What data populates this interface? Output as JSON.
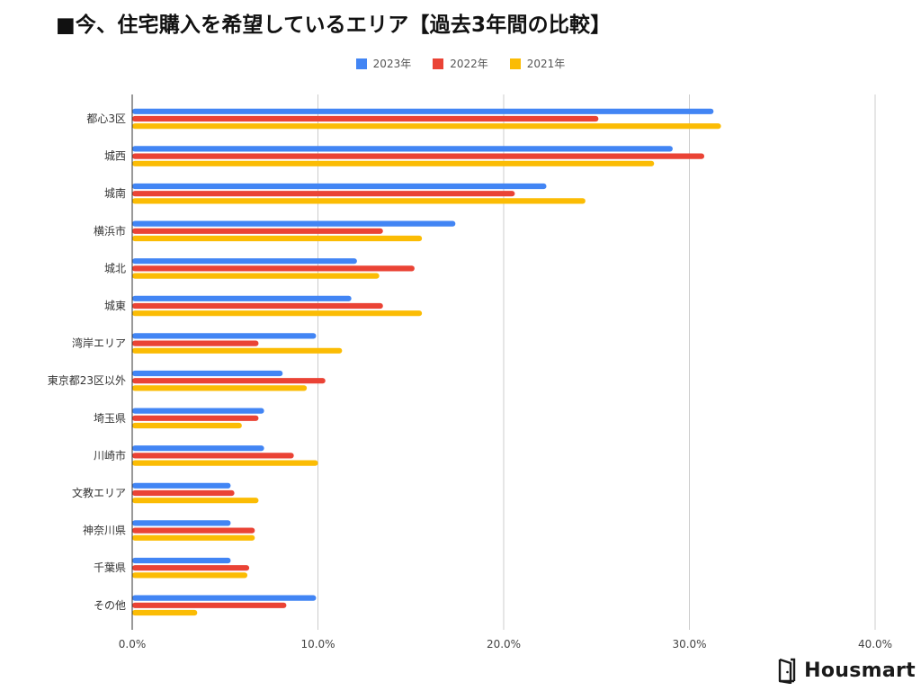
{
  "chart_data": {
    "type": "bar",
    "orientation": "horizontal",
    "title": "■今、住宅購入を希望しているエリア【過去3年間の比較】",
    "categories": [
      "都心3区",
      "城西",
      "城南",
      "横浜市",
      "城北",
      "城東",
      "湾岸エリア",
      "東京都23区以外",
      "埼玉県",
      "川崎市",
      "文教エリア",
      "神奈川県",
      "千葉県",
      "その他"
    ],
    "series": [
      {
        "name": "2023年",
        "color": "#4285f4",
        "values": [
          31.3,
          29.1,
          22.3,
          17.4,
          12.1,
          11.8,
          9.9,
          8.1,
          7.1,
          7.1,
          5.3,
          5.3,
          5.3,
          9.9
        ]
      },
      {
        "name": "2022年",
        "color": "#ea4335",
        "values": [
          25.1,
          30.8,
          20.6,
          13.5,
          15.2,
          13.5,
          6.8,
          10.4,
          6.8,
          8.7,
          5.5,
          6.6,
          6.3,
          8.3
        ]
      },
      {
        "name": "2021年",
        "color": "#fbbc04",
        "values": [
          31.7,
          28.1,
          24.4,
          15.6,
          13.3,
          15.6,
          11.3,
          9.4,
          5.9,
          10.0,
          6.8,
          6.6,
          6.2,
          3.5
        ]
      }
    ],
    "xlim": [
      0,
      40
    ],
    "xticks": [
      "0.0%",
      "10.0%",
      "20.0%",
      "30.0%",
      "40.0%"
    ],
    "xlabel": "",
    "ylabel": "",
    "grid": true,
    "legend_position": "top-center"
  },
  "brand": {
    "name": "Housmart"
  }
}
